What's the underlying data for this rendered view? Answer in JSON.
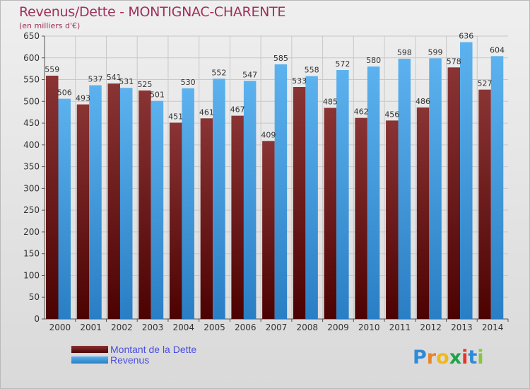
{
  "title": "Revenus/Dette - MONTIGNAC-CHARENTE",
  "subtitle": "(en milliers d'€)",
  "logo": {
    "letters": [
      "P",
      "r",
      "o",
      "x",
      "i",
      "t",
      "i"
    ],
    "colors": [
      "#2f8ad8",
      "#e7842c",
      "#f0b81c",
      "#1ea24a",
      "#e3352b",
      "#2f8ad8",
      "#8ac53f"
    ]
  },
  "colors": {
    "dette": "#7a2626",
    "dette_dark": "#520808",
    "revenus": "#50a8e8",
    "revenus_dark": "#2a80c8",
    "axis_text": "#333333",
    "grid": "#c8c8c8"
  },
  "chart_data": {
    "type": "bar",
    "categories": [
      "2000",
      "2001",
      "2002",
      "2003",
      "2004",
      "2005",
      "2006",
      "2007",
      "2008",
      "2009",
      "2010",
      "2011",
      "2012",
      "2013",
      "2014"
    ],
    "series": [
      {
        "name": "Montant de la Dette",
        "values": [
          559,
          493,
          541,
          525,
          451,
          461,
          467,
          409,
          533,
          485,
          462,
          456,
          486,
          578,
          527
        ]
      },
      {
        "name": "Revenus",
        "values": [
          506,
          537,
          531,
          501,
          530,
          552,
          547,
          585,
          558,
          572,
          580,
          598,
          599,
          636,
          604
        ]
      }
    ],
    "ylim": [
      0,
      650
    ],
    "yticks": [
      0,
      50,
      100,
      150,
      200,
      250,
      300,
      350,
      400,
      450,
      500,
      550,
      600,
      650
    ],
    "grid": true,
    "legend": "bottom-left"
  }
}
